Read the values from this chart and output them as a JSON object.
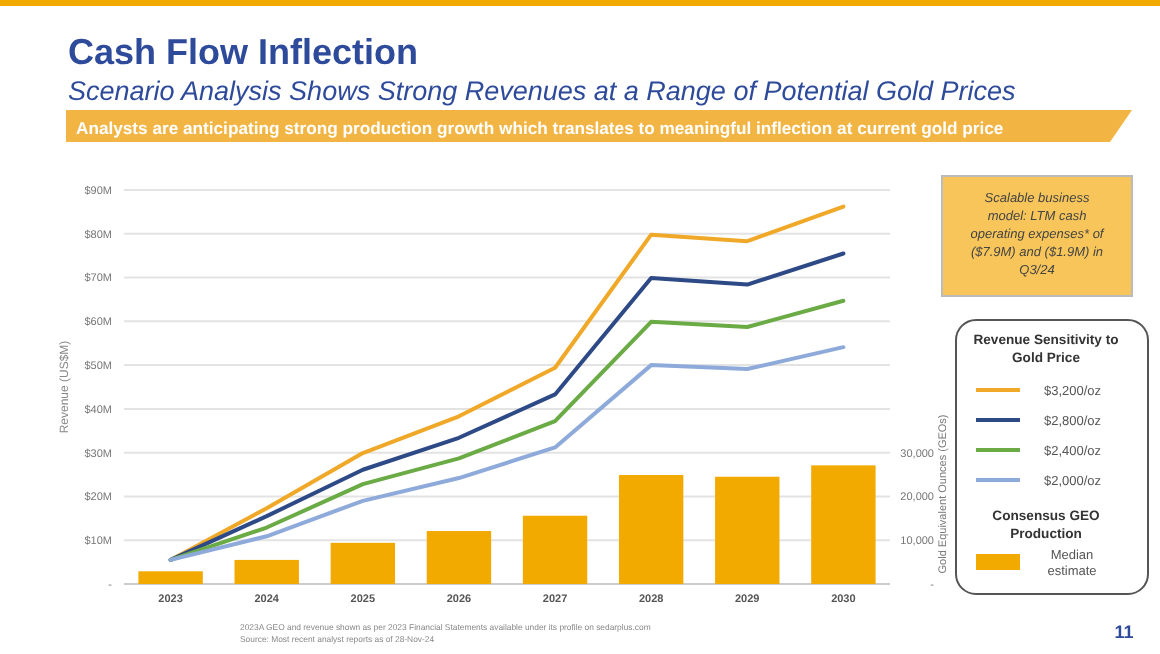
{
  "chart_data": {
    "type": "line",
    "title": "Cash Flow Inflection",
    "subtitle": "Scenario Analysis Shows Strong Revenues at a Range of Potential Gold Prices",
    "ylabel": "Revenue (US$M)",
    "y2label": "Gold Equivalent Ounces (GEOs)",
    "legend_title": "Revenue Sensitivity to Gold Price",
    "categories": [
      "2023",
      "2024",
      "2025",
      "2026",
      "2027",
      "2028",
      "2029",
      "2030"
    ],
    "ylim": [
      0,
      90
    ],
    "yticks": [
      {
        "value": 0,
        "label": "-"
      },
      {
        "value": 10,
        "label": "$10M"
      },
      {
        "value": 20,
        "label": "$20M"
      },
      {
        "value": 30,
        "label": "$30M"
      },
      {
        "value": 40,
        "label": "$40M"
      },
      {
        "value": 50,
        "label": "$50M"
      },
      {
        "value": 60,
        "label": "$60M"
      },
      {
        "value": 70,
        "label": "$70M"
      },
      {
        "value": 80,
        "label": "$80M"
      },
      {
        "value": 90,
        "label": "$90M"
      }
    ],
    "y2lim": [
      0,
      90000
    ],
    "y2ticks": [
      {
        "value": 0,
        "label": "-"
      },
      {
        "value": 10000,
        "label": "10,000"
      },
      {
        "value": 20000,
        "label": "20,000"
      },
      {
        "value": 30000,
        "label": "30,000"
      }
    ],
    "series": [
      {
        "name": "Median estimate",
        "type": "bar",
        "axis": "y2",
        "color": "#f2a900",
        "values": [
          2900,
          5500,
          9400,
          12100,
          15600,
          24900,
          24500,
          27100
        ]
      },
      {
        "name": "$3,200/oz",
        "color": "#f0a828",
        "values": [
          5.5,
          17.3,
          29.9,
          38.3,
          49.4,
          79.8,
          78.3,
          86.2
        ]
      },
      {
        "name": "$2,800/oz",
        "color": "#2e4a86",
        "values": [
          5.5,
          15.5,
          26.1,
          33.4,
          43.3,
          69.9,
          68.4,
          75.5
        ]
      },
      {
        "name": "$2,400/oz",
        "color": "#6aab46",
        "values": [
          5.5,
          12.9,
          22.8,
          28.7,
          37.2,
          59.9,
          58.7,
          64.7
        ]
      },
      {
        "name": "$2,000/oz",
        "color": "#8eaadb",
        "values": [
          5.5,
          10.9,
          19.0,
          24.2,
          31.2,
          50.0,
          49.1,
          54.1
        ]
      }
    ],
    "grid": "y",
    "legend": "right",
    "annotations": [
      "Analysts are anticipating strong production growth which translates to meaningful inflection at current gold price",
      "Scalable business model: LTM cash operating expenses* of ($7.9M) and ($1.9M) in Q3/24",
      "Consensus GEO Production",
      "2023A GEO and revenue shown as per 2023 Financial Statements available under its profile on sedarplus.com",
      "Source: Most recent analyst reports as of 28-Nov-24",
      "11"
    ]
  }
}
